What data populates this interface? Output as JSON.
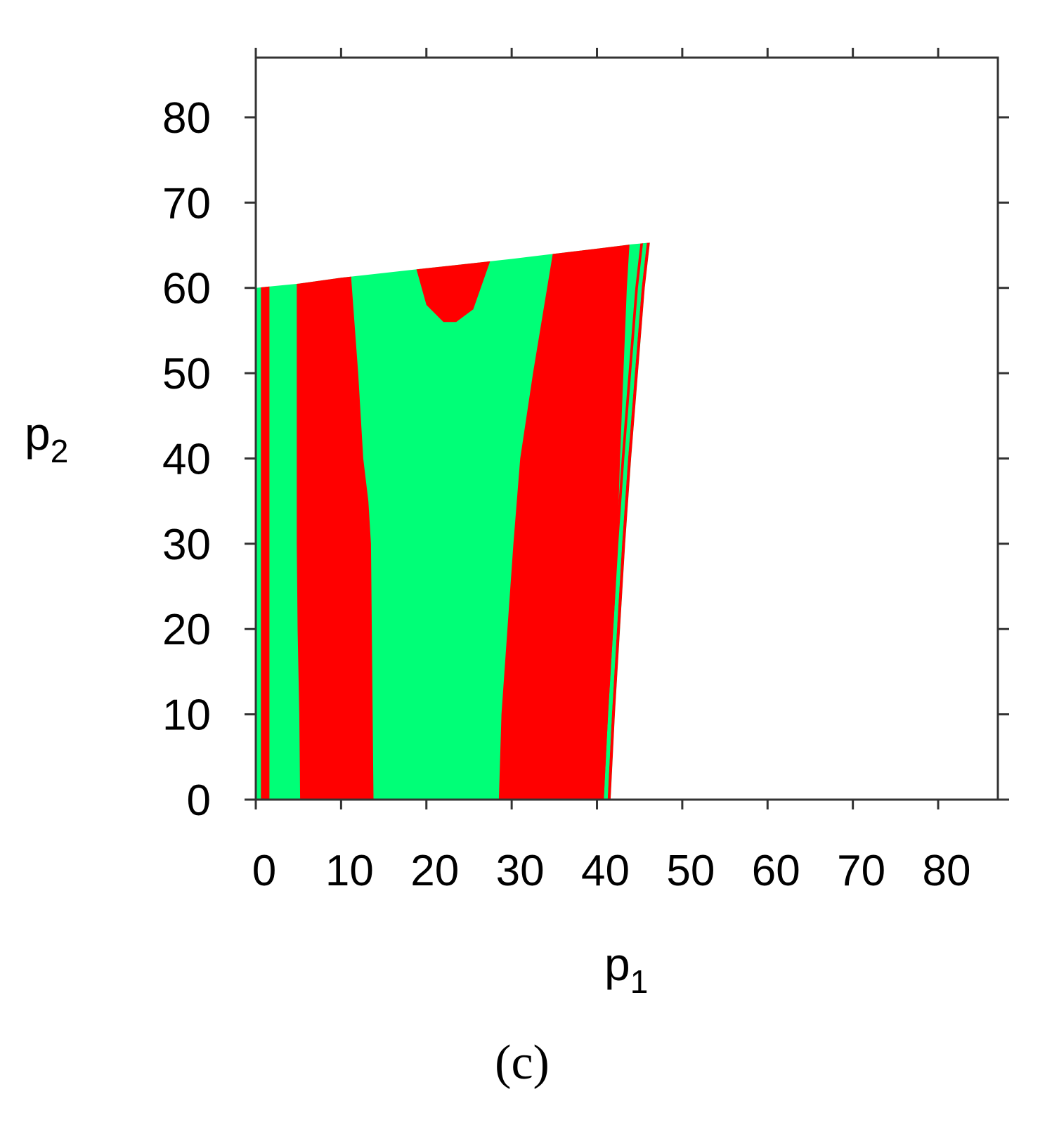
{
  "chart_data": {
    "type": "heatmap",
    "x_label_base": "p",
    "x_label_sub": "1",
    "y_label_base": "p",
    "y_label_sub": "2",
    "caption": "(c)",
    "xlim": [
      0,
      87
    ],
    "ylim": [
      0,
      87
    ],
    "xticks": [
      0,
      10,
      20,
      30,
      40,
      50,
      60,
      70,
      80
    ],
    "yticks": [
      0,
      10,
      20,
      30,
      40,
      50,
      60,
      70,
      80
    ],
    "grid": false,
    "legend": "none",
    "colors": {
      "red": "#ff0000",
      "green": "#00ff77",
      "frame": "#333333"
    },
    "domain_top": [
      [
        0,
        60.0
      ],
      [
        5,
        60.5
      ],
      [
        10,
        61.2
      ],
      [
        20,
        62.3
      ],
      [
        30,
        63.4
      ],
      [
        40,
        64.6
      ],
      [
        44,
        65.1
      ],
      [
        46.2,
        65.3
      ]
    ],
    "domain_right": [
      [
        46.2,
        65.3
      ],
      [
        45.6,
        60
      ],
      [
        44.8,
        50
      ],
      [
        44.0,
        40
      ],
      [
        43.3,
        30
      ],
      [
        42.7,
        20
      ],
      [
        42.1,
        10
      ],
      [
        41.6,
        0
      ]
    ],
    "bands": [
      {
        "color": "red",
        "left": [
          [
            0.6,
            0
          ],
          [
            0.6,
            60
          ]
        ],
        "right": [
          [
            1.6,
            0
          ],
          [
            1.6,
            60
          ]
        ]
      },
      {
        "color": "red",
        "left": [
          [
            5.2,
            0
          ],
          [
            5.1,
            10
          ],
          [
            4.9,
            20
          ],
          [
            4.8,
            30
          ],
          [
            4.8,
            40
          ],
          [
            4.8,
            50
          ],
          [
            4.8,
            60.5
          ]
        ],
        "right": [
          [
            13.8,
            0
          ],
          [
            13.7,
            10
          ],
          [
            13.6,
            20
          ],
          [
            13.5,
            30
          ],
          [
            13.2,
            35
          ],
          [
            12.6,
            40
          ],
          [
            12.0,
            50
          ],
          [
            11.2,
            61
          ]
        ]
      },
      {
        "color": "red",
        "left": [
          [
            28.5,
            0
          ],
          [
            28.8,
            10
          ],
          [
            29.5,
            20
          ],
          [
            30.2,
            30
          ],
          [
            31.0,
            40
          ],
          [
            32.5,
            50
          ],
          [
            34.8,
            63.9
          ]
        ],
        "right": [
          [
            41.0,
            0
          ],
          [
            41.5,
            10
          ],
          [
            42.0,
            20
          ],
          [
            42.4,
            30
          ],
          [
            42.7,
            40
          ],
          [
            43.1,
            50
          ],
          [
            43.5,
            60
          ],
          [
            43.8,
            64.9
          ]
        ]
      },
      {
        "color": "red",
        "left": [
          [
            18.8,
            62.3
          ],
          [
            20.0,
            58.0
          ],
          [
            22.0,
            56.0
          ],
          [
            23.5,
            56.0
          ],
          [
            25.5,
            57.5
          ],
          [
            27.5,
            63.2
          ]
        ],
        "right": []
      }
    ]
  }
}
